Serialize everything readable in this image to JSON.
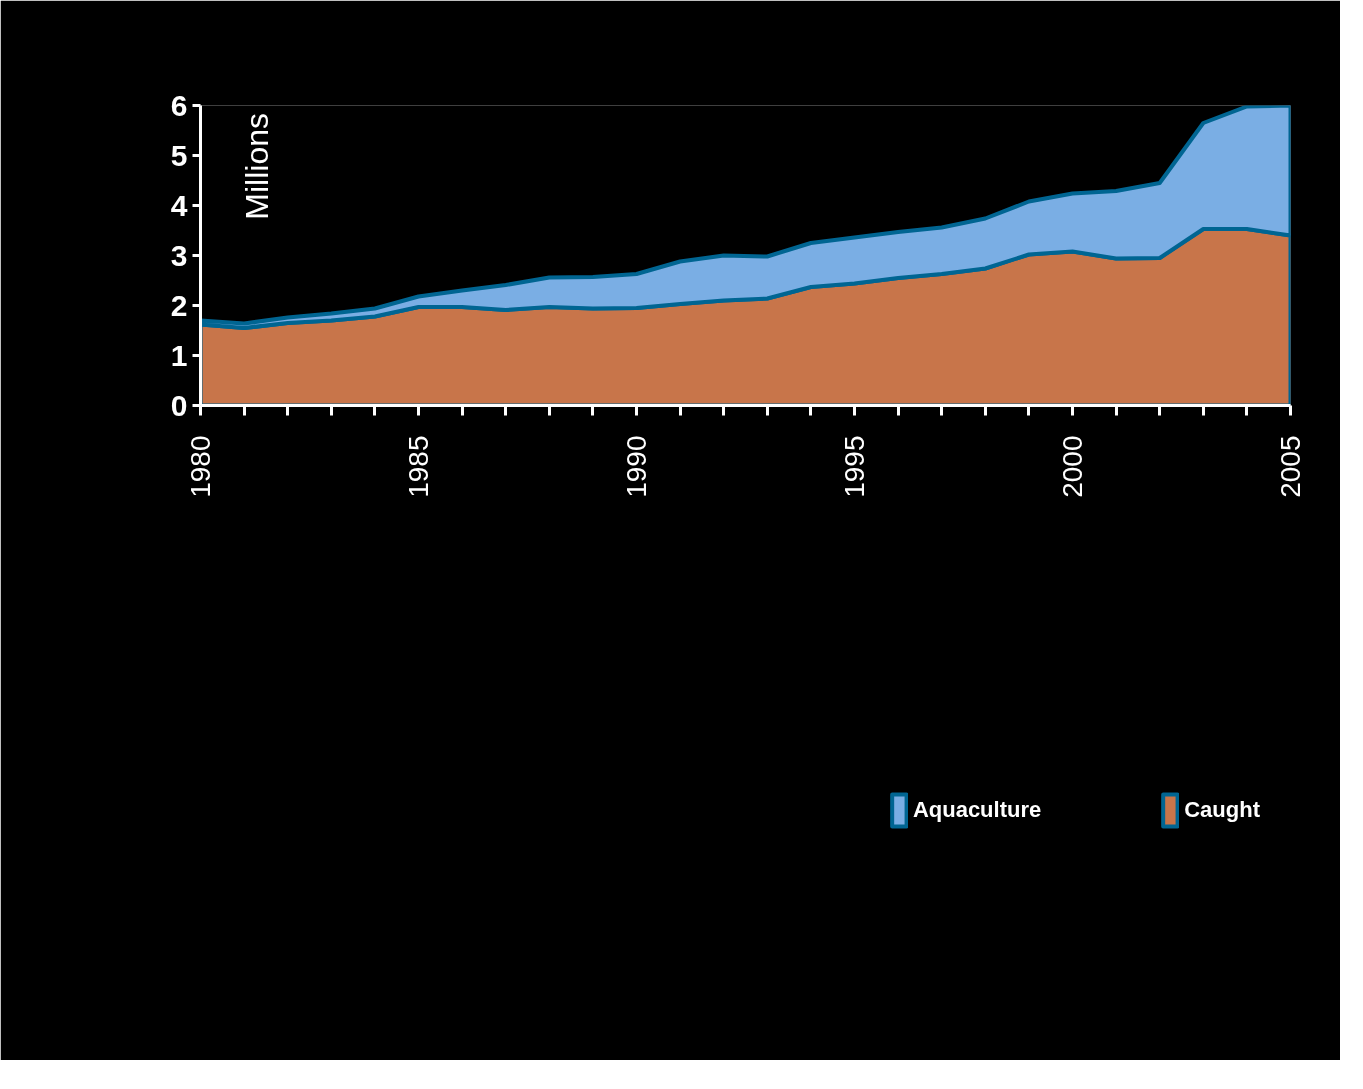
{
  "chart_data": {
    "type": "area",
    "stacked": true,
    "ylabel": "Millions",
    "x": [
      1980,
      1981,
      1982,
      1983,
      1984,
      1985,
      1986,
      1987,
      1988,
      1989,
      1990,
      1991,
      1992,
      1993,
      1994,
      1995,
      1996,
      1997,
      1998,
      1999,
      2000,
      2001,
      2002,
      2003,
      2004,
      2005
    ],
    "series": [
      {
        "name": "Caught",
        "color": "#c8754a",
        "values": [
          1.62,
          1.55,
          1.65,
          1.7,
          1.78,
          1.97,
          1.97,
          1.91,
          1.97,
          1.94,
          1.95,
          2.03,
          2.1,
          2.14,
          2.37,
          2.44,
          2.55,
          2.63,
          2.74,
          3.02,
          3.08,
          2.94,
          2.95,
          3.53,
          3.53,
          3.4
        ]
      },
      {
        "name": "Aquaculture",
        "color": "#7aaee4",
        "values": [
          0.08,
          0.09,
          0.11,
          0.14,
          0.16,
          0.21,
          0.33,
          0.5,
          0.59,
          0.63,
          0.68,
          0.85,
          0.9,
          0.84,
          0.88,
          0.92,
          0.92,
          0.93,
          1.0,
          1.06,
          1.16,
          1.35,
          1.5,
          2.12,
          2.45,
          2.6
        ]
      }
    ],
    "xlim": [
      1980,
      2005
    ],
    "xticks": [
      1980,
      {
        "value": 1981,
        "label": null
      },
      {
        "value": 1982,
        "label": null
      },
      {
        "value": 1983,
        "label": null
      },
      {
        "value": 1984,
        "label": null
      },
      1985,
      {
        "value": 1986,
        "label": null
      },
      {
        "value": 1987,
        "label": null
      },
      {
        "value": 1988,
        "label": null
      },
      {
        "value": 1989,
        "label": null
      },
      1990,
      {
        "value": 1991,
        "label": null
      },
      {
        "value": 1992,
        "label": null
      },
      {
        "value": 1993,
        "label": null
      },
      {
        "value": 1994,
        "label": null
      },
      1995,
      {
        "value": 1996,
        "label": null
      },
      {
        "value": 1997,
        "label": null
      },
      {
        "value": 1998,
        "label": null
      },
      {
        "value": 1999,
        "label": null
      },
      2000,
      {
        "value": 2001,
        "label": null
      },
      {
        "value": 2002,
        "label": null
      },
      {
        "value": 2003,
        "label": null
      },
      {
        "value": 2004,
        "label": null
      },
      2005
    ],
    "ylim": [
      0,
      6
    ],
    "yticks": [
      0,
      1,
      2,
      3,
      4,
      5,
      6
    ],
    "grid": false,
    "legend": "bottom"
  }
}
